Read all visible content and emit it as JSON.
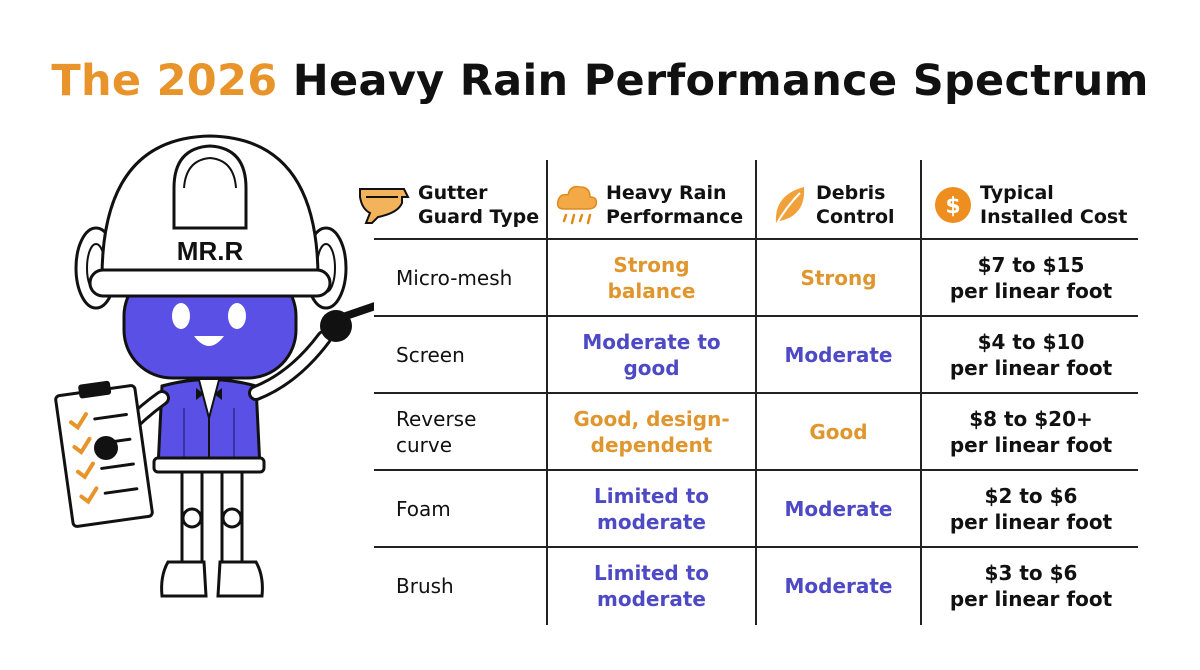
{
  "title": {
    "accent": "The 2026",
    "rest": "Heavy Rain Performance Spectrum"
  },
  "mascot": {
    "helmet_text": "MR.R"
  },
  "colors": {
    "accent": "#E8942B",
    "purple": "#4E49C4",
    "mascot_face": "#5B50E6"
  },
  "headers": [
    {
      "icon": "gutter-icon",
      "line1": "Gutter",
      "line2": "Guard Type"
    },
    {
      "icon": "rain-cloud-icon",
      "line1": "Heavy Rain",
      "line2": "Performance"
    },
    {
      "icon": "leaf-icon",
      "line1": "Debris",
      "line2": "Control"
    },
    {
      "icon": "dollar-coin-icon",
      "line1": "Typical",
      "line2": "Installed Cost"
    }
  ],
  "rows": [
    {
      "type": [
        "Micro-mesh"
      ],
      "performance": [
        "Strong",
        "balance"
      ],
      "performance_color": "orange",
      "debris": "Strong",
      "debris_color": "orange",
      "cost": [
        "$7 to $15",
        "per linear foot"
      ]
    },
    {
      "type": [
        "Screen"
      ],
      "performance": [
        "Moderate to",
        "good"
      ],
      "performance_color": "purple",
      "debris": "Moderate",
      "debris_color": "purple",
      "cost": [
        "$4 to $10",
        "per linear foot"
      ]
    },
    {
      "type": [
        "Reverse",
        "curve"
      ],
      "performance": [
        "Good, design-",
        "dependent"
      ],
      "performance_color": "orange",
      "debris": "Good",
      "debris_color": "orange",
      "cost": [
        "$8 to $20+",
        "per linear foot"
      ]
    },
    {
      "type": [
        "Foam"
      ],
      "performance": [
        "Limited to",
        "moderate"
      ],
      "performance_color": "purple",
      "debris": "Moderate",
      "debris_color": "purple",
      "cost": [
        "$2 to $6",
        "per linear foot"
      ]
    },
    {
      "type": [
        "Brush"
      ],
      "performance": [
        "Limited to",
        "moderate"
      ],
      "performance_color": "purple",
      "debris": "Moderate",
      "debris_color": "purple",
      "cost": [
        "$3 to $6",
        "per linear foot"
      ]
    }
  ]
}
